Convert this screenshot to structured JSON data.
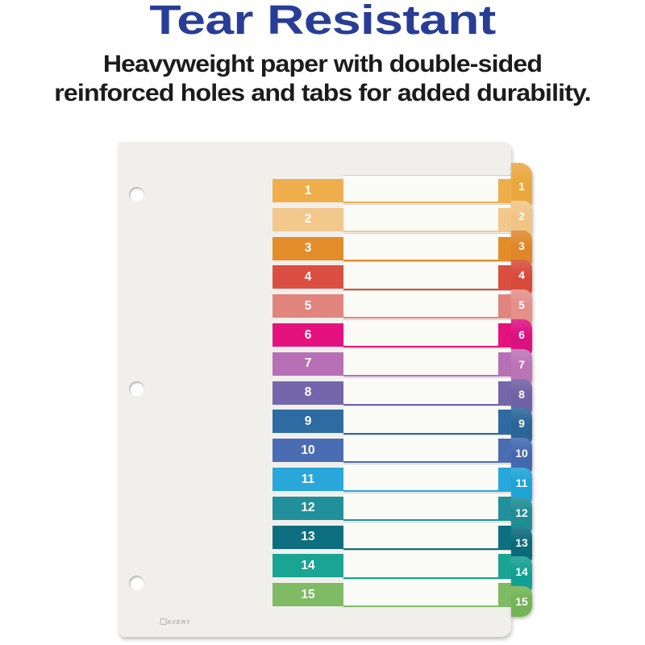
{
  "title": "Tear Resistant",
  "subtitle": {
    "line1": "Heavyweight paper with double-sided",
    "line2": "reinforced holes and tabs for added durability."
  },
  "colors": {
    "title": "#283e96",
    "paper": "#f0efec",
    "row_strip": "#fafaf7"
  },
  "brand": {
    "name": "AVERY"
  },
  "tabs": [
    {
      "number": "1",
      "color": "#eeae4c",
      "tab_color": "#e9a83f"
    },
    {
      "number": "2",
      "color": "#f2c88d",
      "tab_color": "#f0c485"
    },
    {
      "number": "3",
      "color": "#e38d2a",
      "tab_color": "#e0872a"
    },
    {
      "number": "4",
      "color": "#da4f41",
      "tab_color": "#d84b3b"
    },
    {
      "number": "5",
      "color": "#e1847d",
      "tab_color": "#e48f88"
    },
    {
      "number": "6",
      "color": "#e5127d",
      "tab_color": "#db1180"
    },
    {
      "number": "7",
      "color": "#b76fb5",
      "tab_color": "#bb74b6"
    },
    {
      "number": "8",
      "color": "#7466aa",
      "tab_color": "#6f61a5"
    },
    {
      "number": "9",
      "color": "#2d6ba2",
      "tab_color": "#2b6598"
    },
    {
      "number": "10",
      "color": "#4a6cb3",
      "tab_color": "#4468b0"
    },
    {
      "number": "11",
      "color": "#29a7db",
      "tab_color": "#1ea3d7"
    },
    {
      "number": "12",
      "color": "#21909a",
      "tab_color": "#1e8c93"
    },
    {
      "number": "13",
      "color": "#0d6f7f",
      "tab_color": "#0b6a7a"
    },
    {
      "number": "14",
      "color": "#19a494",
      "tab_color": "#13a092"
    },
    {
      "number": "15",
      "color": "#7fba64",
      "tab_color": "#74b457"
    }
  ]
}
